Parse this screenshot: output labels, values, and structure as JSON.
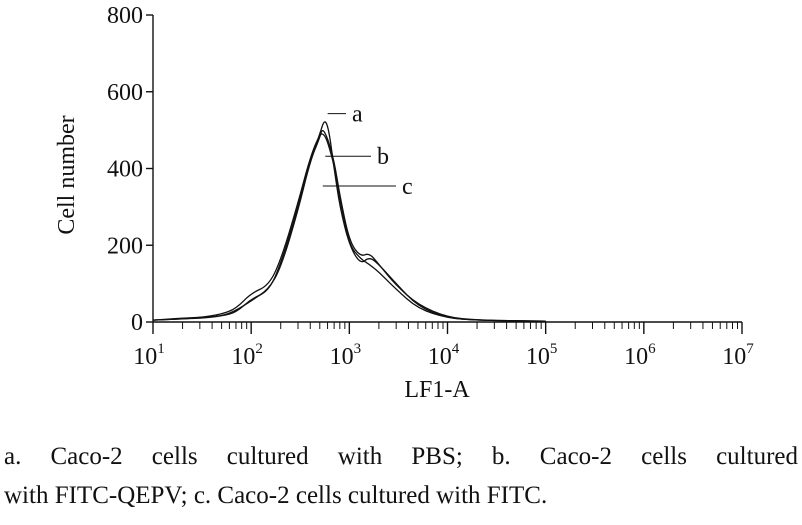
{
  "chart_data": {
    "type": "line",
    "xlabel": "LF1-A",
    "ylabel": "Cell number",
    "xscale": "log",
    "xlim": [
      10,
      10000000
    ],
    "ylim": [
      0,
      800
    ],
    "x_ticks": [
      {
        "base": "10",
        "exp": "1"
      },
      {
        "base": "10",
        "exp": "2"
      },
      {
        "base": "10",
        "exp": "3"
      },
      {
        "base": "10",
        "exp": "4"
      },
      {
        "base": "10",
        "exp": "5"
      },
      {
        "base": "10",
        "exp": "6"
      },
      {
        "base": "10",
        "exp": "7"
      }
    ],
    "y_ticks": [
      "0",
      "200",
      "400",
      "600",
      "800"
    ],
    "grid": false,
    "series": [
      {
        "name": "a",
        "x": [
          10,
          20,
          30,
          50,
          70,
          100,
          150,
          200,
          300,
          400,
          500,
          560,
          620,
          700,
          800,
          1000,
          1300,
          1600,
          2000,
          3000,
          5000,
          10000,
          20000,
          50000,
          100000
        ],
        "y": [
          5,
          8,
          10,
          15,
          25,
          60,
          80,
          150,
          300,
          420,
          490,
          530,
          500,
          400,
          300,
          200,
          150,
          170,
          150,
          100,
          40,
          10,
          5,
          3,
          2
        ]
      },
      {
        "name": "b",
        "x": [
          10,
          20,
          30,
          50,
          70,
          100,
          150,
          200,
          300,
          400,
          500,
          530,
          600,
          700,
          800,
          1000,
          1300,
          1600,
          2000,
          3000,
          5000,
          10000,
          20000,
          50000,
          100000
        ],
        "y": [
          5,
          10,
          12,
          15,
          30,
          55,
          85,
          140,
          290,
          420,
          480,
          505,
          480,
          420,
          330,
          210,
          170,
          180,
          150,
          95,
          45,
          12,
          5,
          3,
          2
        ]
      },
      {
        "name": "c",
        "x": [
          10,
          20,
          30,
          50,
          70,
          100,
          150,
          200,
          300,
          400,
          500,
          550,
          600,
          700,
          800,
          1000,
          1300,
          1600,
          2000,
          3000,
          5000,
          10000,
          20000,
          50000,
          100000
        ],
        "y": [
          5,
          8,
          12,
          20,
          35,
          75,
          95,
          160,
          310,
          430,
          490,
          490,
          470,
          410,
          320,
          200,
          165,
          150,
          130,
          85,
          35,
          10,
          5,
          3,
          2
        ]
      }
    ]
  },
  "caption": {
    "line1": "a. Caco-2 cells cultured with PBS; b. Caco-2 cells cultured",
    "line2": "with FITC-QEPV; c. Caco-2 cells cultured with FITC."
  }
}
